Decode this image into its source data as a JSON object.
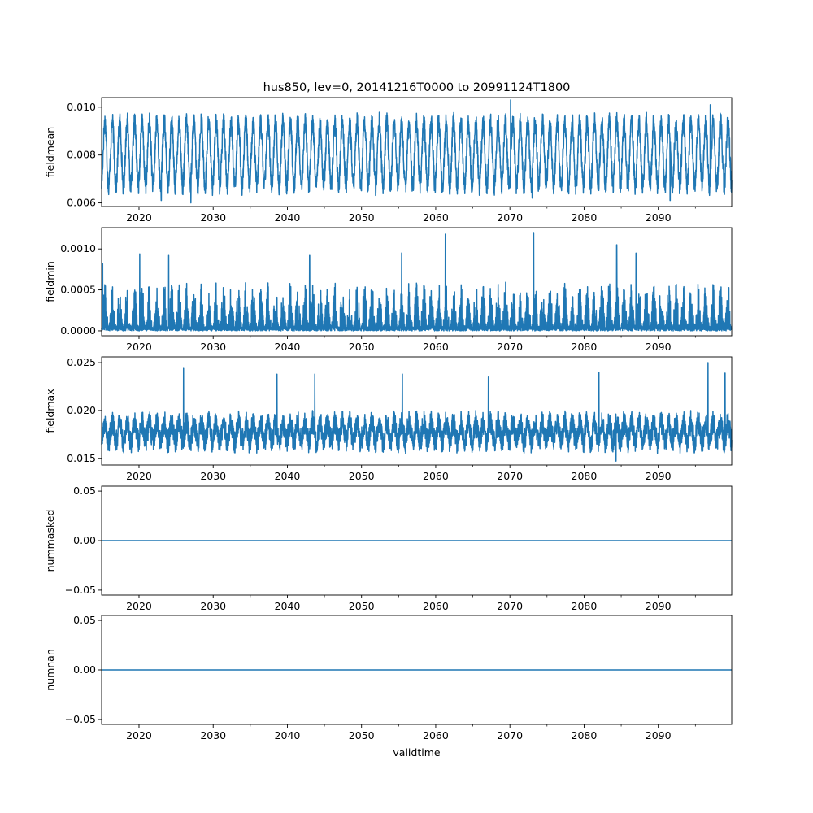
{
  "figure": {
    "title": "hus850, lev=0, 20141216T0000 to 20991124T1800",
    "xlabel": "validtime",
    "line_color": "#1f77b4"
  },
  "chart_data": [
    {
      "type": "line",
      "ylabel": "fieldmean",
      "xlim": [
        2014.96,
        2099.9
      ],
      "ylim": [
        0.00585,
        0.0104
      ],
      "yticks": [
        0.006,
        0.008,
        0.01
      ],
      "ytick_labels": [
        "0.006",
        "0.008",
        "0.010"
      ],
      "xticks": [
        2020,
        2030,
        2040,
        2050,
        2060,
        2070,
        2080,
        2090
      ],
      "xtick_labels": [
        "2020",
        "2030",
        "2040",
        "2050",
        "2060",
        "2070",
        "2080",
        "2090"
      ],
      "series": [
        {
          "pattern": "seasonal",
          "x_start": 2014.96,
          "x_end": 2099.9,
          "period_years": 1,
          "typical_min": 0.0065,
          "typical_max": 0.0096,
          "extremes": [
            {
              "x": 2023.0,
              "y": 0.0061
            },
            {
              "x": 2027.0,
              "y": 0.006
            },
            {
              "x": 2070.1,
              "y": 0.0103
            },
            {
              "x": 2073.0,
              "y": 0.0062
            },
            {
              "x": 2091.6,
              "y": 0.0061
            },
            {
              "x": 2097.0,
              "y": 0.0101
            }
          ]
        }
      ]
    },
    {
      "type": "line",
      "ylabel": "fieldmin",
      "xlim": [
        2014.96,
        2099.9
      ],
      "ylim": [
        -6e-05,
        0.00126
      ],
      "yticks": [
        0.0,
        0.0005,
        0.001
      ],
      "ytick_labels": [
        "0.0000",
        "0.0005",
        "0.0010"
      ],
      "xticks": [
        2020,
        2030,
        2040,
        2050,
        2060,
        2070,
        2080,
        2090
      ],
      "xtick_labels": [
        "2020",
        "2030",
        "2040",
        "2050",
        "2060",
        "2070",
        "2080",
        "2090"
      ],
      "series": [
        {
          "pattern": "noisy-positive",
          "x_start": 2014.96,
          "x_end": 2099.9,
          "period_years": 1,
          "typical_min": 0.0,
          "typical_max": 0.0006,
          "extremes": [
            {
              "x": 2015.1,
              "y": 0.00082
            },
            {
              "x": 2020.1,
              "y": 0.00094
            },
            {
              "x": 2024.0,
              "y": 0.00092
            },
            {
              "x": 2043.0,
              "y": 0.00092
            },
            {
              "x": 2055.4,
              "y": 0.00095
            },
            {
              "x": 2061.3,
              "y": 0.00118
            },
            {
              "x": 2073.2,
              "y": 0.0012
            },
            {
              "x": 2084.4,
              "y": 0.00105
            },
            {
              "x": 2087.0,
              "y": 0.00095
            }
          ]
        }
      ]
    },
    {
      "type": "line",
      "ylabel": "fieldmax",
      "xlim": [
        2014.96,
        2099.9
      ],
      "ylim": [
        0.0143,
        0.0256
      ],
      "yticks": [
        0.015,
        0.02,
        0.025
      ],
      "ytick_labels": [
        "0.015",
        "0.020",
        "0.025"
      ],
      "xticks": [
        2020,
        2030,
        2040,
        2050,
        2060,
        2070,
        2080,
        2090
      ],
      "xtick_labels": [
        "2020",
        "2030",
        "2040",
        "2050",
        "2060",
        "2070",
        "2080",
        "2090"
      ],
      "series": [
        {
          "pattern": "noisy-band",
          "x_start": 2014.96,
          "x_end": 2099.9,
          "period_years": 1,
          "typical_min": 0.0155,
          "typical_max": 0.0205,
          "extremes": [
            {
              "x": 2026.0,
              "y": 0.0244
            },
            {
              "x": 2038.6,
              "y": 0.0238
            },
            {
              "x": 2043.7,
              "y": 0.0238
            },
            {
              "x": 2055.5,
              "y": 0.0238
            },
            {
              "x": 2067.1,
              "y": 0.0235
            },
            {
              "x": 2082.0,
              "y": 0.024
            },
            {
              "x": 2084.3,
              "y": 0.0147
            },
            {
              "x": 2096.7,
              "y": 0.025
            },
            {
              "x": 2099.0,
              "y": 0.0239
            }
          ]
        }
      ]
    },
    {
      "type": "line",
      "ylabel": "nummasked",
      "xlim": [
        2014.96,
        2099.9
      ],
      "ylim": [
        -0.055,
        0.055
      ],
      "yticks": [
        -0.05,
        0.0,
        0.05
      ],
      "ytick_labels": [
        "−0.05",
        "0.00",
        "0.05"
      ],
      "xticks": [
        2020,
        2030,
        2040,
        2050,
        2060,
        2070,
        2080,
        2090
      ],
      "xtick_labels": [
        "2020",
        "2030",
        "2040",
        "2050",
        "2060",
        "2070",
        "2080",
        "2090"
      ],
      "series": [
        {
          "pattern": "constant",
          "x_start": 2014.96,
          "x_end": 2099.9,
          "value": 0
        }
      ]
    },
    {
      "type": "line",
      "ylabel": "numnan",
      "xlim": [
        2014.96,
        2099.9
      ],
      "ylim": [
        -0.055,
        0.055
      ],
      "yticks": [
        -0.05,
        0.0,
        0.05
      ],
      "ytick_labels": [
        "−0.05",
        "0.00",
        "0.05"
      ],
      "xticks": [
        2020,
        2030,
        2040,
        2050,
        2060,
        2070,
        2080,
        2090
      ],
      "xtick_labels": [
        "2020",
        "2030",
        "2040",
        "2050",
        "2060",
        "2070",
        "2080",
        "2090"
      ],
      "series": [
        {
          "pattern": "constant",
          "x_start": 2014.96,
          "x_end": 2099.9,
          "value": 0
        }
      ]
    }
  ]
}
